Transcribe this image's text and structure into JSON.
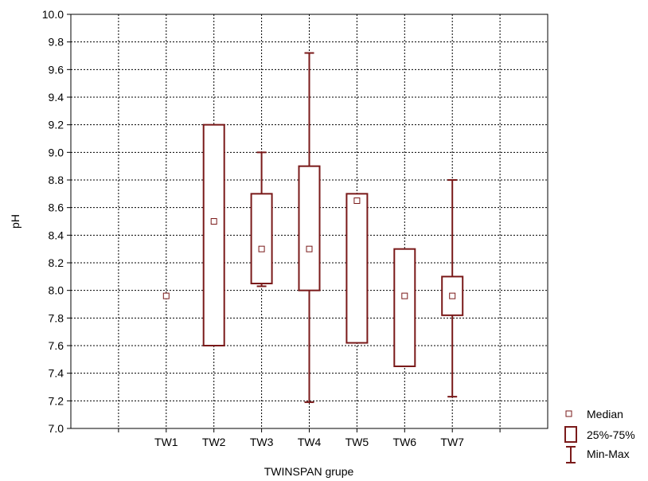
{
  "chart_data": {
    "type": "boxplot",
    "xlabel": "TWINSPAN grupe",
    "ylabel": "pH",
    "ylim": [
      7.0,
      10.0
    ],
    "ytick_step": 0.2,
    "grid": true,
    "legend_position": "bottom-right, outside plot",
    "box_color": "#7a1a1a",
    "categories": [
      "TW1",
      "TW2",
      "TW3",
      "TW4",
      "TW5",
      "TW6",
      "TW7"
    ],
    "groups": [
      {
        "name": "TW1",
        "median": 7.96,
        "q1": 7.96,
        "q3": 7.96,
        "min": 7.96,
        "max": 7.96
      },
      {
        "name": "TW2",
        "median": 8.5,
        "q1": 7.6,
        "q3": 9.2,
        "min": 7.6,
        "max": 9.2
      },
      {
        "name": "TW3",
        "median": 8.3,
        "q1": 8.05,
        "q3": 8.7,
        "min": 8.03,
        "max": 9.0
      },
      {
        "name": "TW4",
        "median": 8.3,
        "q1": 8.0,
        "q3": 8.9,
        "min": 7.19,
        "max": 9.72
      },
      {
        "name": "TW5",
        "median": 8.65,
        "q1": 7.62,
        "q3": 8.7,
        "min": 7.62,
        "max": 8.7
      },
      {
        "name": "TW6",
        "median": 7.96,
        "q1": 7.45,
        "q3": 8.3,
        "min": 7.45,
        "max": 8.3
      },
      {
        "name": "TW7",
        "median": 7.96,
        "q1": 7.82,
        "q3": 8.1,
        "min": 7.23,
        "max": 8.8
      }
    ],
    "legend": [
      "Median",
      "25%-75%",
      "Min-Max"
    ]
  }
}
